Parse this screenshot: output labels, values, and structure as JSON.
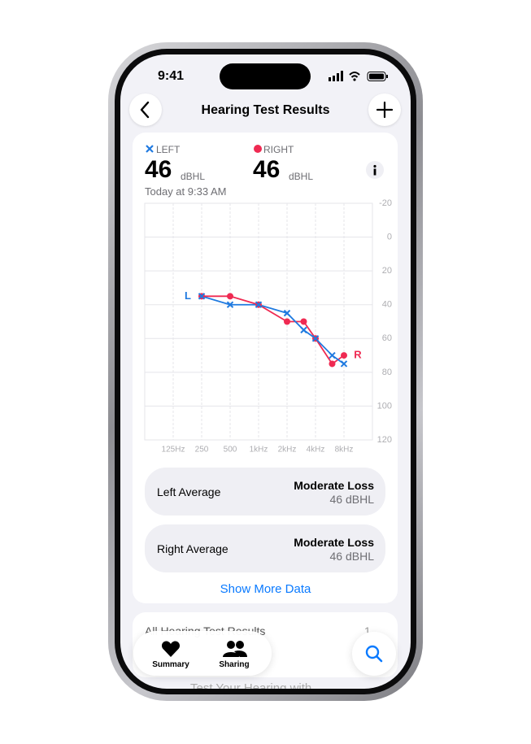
{
  "status_bar": {
    "time": "9:41"
  },
  "nav": {
    "title": "Hearing Test Results"
  },
  "summary": {
    "left": {
      "label": "LEFT",
      "value": 46,
      "unit": "dBHL"
    },
    "right": {
      "label": "RIGHT",
      "value": 46,
      "unit": "dBHL"
    },
    "date": "Today at 9:33 AM"
  },
  "audiogram": {
    "type": "line",
    "x_scale": "log",
    "y_inverted": true,
    "grid": true,
    "xlim": [
      62.5,
      16000
    ],
    "ylim": [
      -20,
      120
    ],
    "xticks": [
      {
        "value": 125,
        "label": "125Hz"
      },
      250,
      500,
      {
        "value": 1000,
        "label": "1kHz"
      },
      {
        "value": 2000,
        "label": "2kHz"
      },
      {
        "value": 4000,
        "label": "4kHz"
      },
      {
        "value": 8000,
        "label": "8kHz"
      }
    ],
    "yticks": [
      -20,
      0,
      20,
      40,
      60,
      80,
      100,
      120
    ],
    "x": [
      250,
      500,
      1000,
      2000,
      3000,
      4000,
      6000,
      8000
    ],
    "series": [
      {
        "name": "LEFT",
        "tag": "L",
        "color": "#1f7ae0",
        "marker": "x",
        "values": [
          35,
          40,
          40,
          45,
          55,
          60,
          70,
          75
        ]
      },
      {
        "name": "RIGHT",
        "tag": "R",
        "color": "#ef2a52",
        "marker": "circle",
        "values": [
          35,
          35,
          40,
          50,
          50,
          60,
          75,
          70
        ]
      }
    ]
  },
  "averages": [
    {
      "label": "Left Average",
      "rating": "Moderate Loss",
      "value": "46 dBHL"
    },
    {
      "label": "Right Average",
      "rating": "Moderate Loss",
      "value": "46 dBHL"
    }
  ],
  "show_more": "Show More Data",
  "all_results": {
    "label": "All Hearing Test Results",
    "count": 1
  },
  "tabs": [
    {
      "label": "Summary"
    },
    {
      "label": "Sharing"
    }
  ],
  "promo": "Test Your Hearing with"
}
